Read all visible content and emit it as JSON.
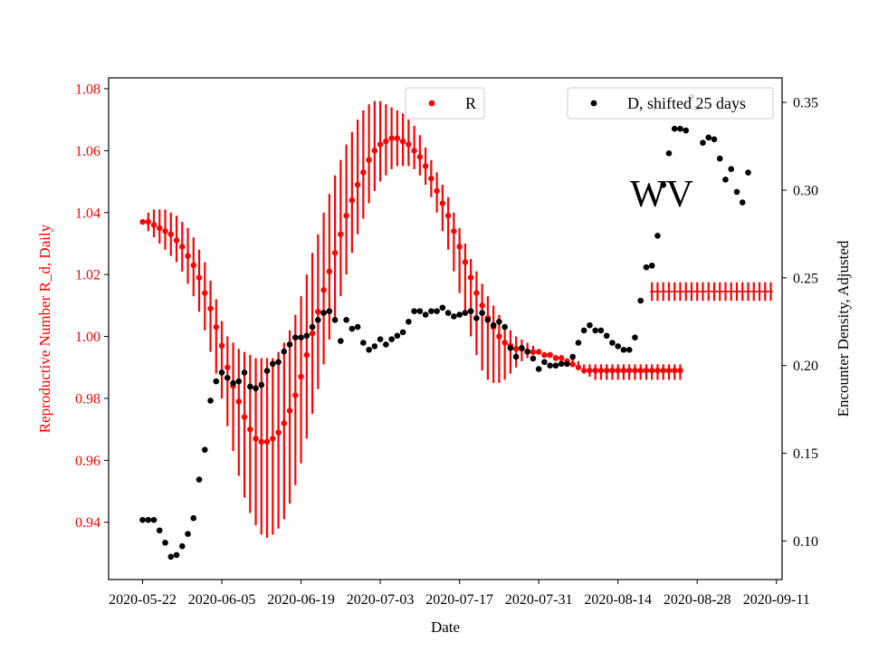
{
  "chart_data": {
    "type": "scatter",
    "xlabel": "Date",
    "ylabel_left": "Reproductive Number R_d, Daily",
    "ylabel_right": "Encounter Density, Adjusted",
    "annotation": "WV",
    "x_range": [
      "2020-05-16",
      "2020-09-12"
    ],
    "x_ticks": [
      "2020-05-22",
      "2020-06-05",
      "2020-06-19",
      "2020-07-03",
      "2020-07-17",
      "2020-07-31",
      "2020-08-14",
      "2020-08-28",
      "2020-09-11"
    ],
    "ylim_left": [
      0.9215,
      1.0835
    ],
    "yticks_left": [
      "0.94",
      "0.96",
      "0.98",
      "1.00",
      "1.02",
      "1.04",
      "1.06",
      "1.08"
    ],
    "ylim_right": [
      0.078,
      0.364
    ],
    "yticks_right": [
      "0.10",
      "0.15",
      "0.20",
      "0.25",
      "0.30",
      "0.35"
    ],
    "colors": {
      "R": "#ff0000",
      "D": "#000000",
      "left_axis": "#ff0000"
    },
    "grid": false,
    "legend": [
      {
        "label": "R",
        "position": "upper-center"
      },
      {
        "label": "D, shifted 25 days",
        "position": "top-right"
      }
    ],
    "series": [
      {
        "name": "R",
        "axis": "left",
        "style": "points with vertical error bars",
        "start_date": "2020-05-22",
        "interval_days": 1,
        "values": [
          1.037,
          1.037,
          1.036,
          1.035,
          1.034,
          1.033,
          1.031,
          1.029,
          1.026,
          1.023,
          1.019,
          1.014,
          1.009,
          1.003,
          0.997,
          0.99,
          0.984,
          0.979,
          0.974,
          0.97,
          0.967,
          0.966,
          0.966,
          0.967,
          0.969,
          0.972,
          0.976,
          0.981,
          0.987,
          0.994,
          1.001,
          1.008,
          1.015,
          1.021,
          1.027,
          1.033,
          1.039,
          1.044,
          1.049,
          1.053,
          1.057,
          1.06,
          1.062,
          1.063,
          1.064,
          1.064,
          1.063,
          1.062,
          1.06,
          1.058,
          1.055,
          1.051,
          1.047,
          1.043,
          1.039,
          1.034,
          1.029,
          1.024,
          1.019,
          1.014,
          1.01,
          1.006,
          1.003,
          1.0,
          0.998,
          0.997,
          0.996,
          0.996,
          0.995,
          0.995,
          0.995,
          0.994,
          0.994,
          0.993,
          0.993,
          0.992,
          0.991,
          0.99,
          0.989,
          0.989,
          0.989,
          0.989,
          0.989,
          0.989,
          0.989,
          0.989,
          0.989,
          0.989,
          0.989,
          0.989,
          0.989,
          0.989,
          0.989,
          0.989,
          0.989,
          0.989
        ],
        "error_lo": [
          1.037,
          1.034,
          1.032,
          1.03,
          1.028,
          1.026,
          1.024,
          1.021,
          1.017,
          1.013,
          1.008,
          1.002,
          0.995,
          0.988,
          0.98,
          0.971,
          0.963,
          0.955,
          0.948,
          0.943,
          0.939,
          0.936,
          0.935,
          0.936,
          0.938,
          0.941,
          0.946,
          0.952,
          0.959,
          0.967,
          0.975,
          0.983,
          0.991,
          0.999,
          1.006,
          1.013,
          1.02,
          1.027,
          1.033,
          1.038,
          1.043,
          1.047,
          1.05,
          1.052,
          1.054,
          1.055,
          1.055,
          1.055,
          1.054,
          1.052,
          1.049,
          1.045,
          1.04,
          1.034,
          1.028,
          1.021,
          1.014,
          1.007,
          1.0,
          0.994,
          0.989,
          0.986,
          0.985,
          0.985,
          0.986,
          0.988,
          0.99,
          0.992,
          0.993,
          0.994,
          0.995,
          0.994,
          0.994,
          0.993,
          0.993,
          0.992,
          0.991,
          0.99,
          0.988,
          0.987,
          0.986,
          0.986,
          0.986,
          0.986,
          0.986,
          0.986,
          0.986,
          0.986,
          0.986,
          0.986,
          0.986,
          0.986,
          0.986,
          0.986,
          0.986,
          0.986
        ],
        "error_hi": [
          1.037,
          1.04,
          1.041,
          1.041,
          1.041,
          1.04,
          1.039,
          1.037,
          1.035,
          1.032,
          1.028,
          1.024,
          1.018,
          1.012,
          1.005,
          1.0,
          0.998,
          0.996,
          0.995,
          0.994,
          0.993,
          0.993,
          0.993,
          0.993,
          0.995,
          0.998,
          1.002,
          1.007,
          1.013,
          1.02,
          1.027,
          1.033,
          1.04,
          1.046,
          1.052,
          1.057,
          1.062,
          1.066,
          1.07,
          1.073,
          1.075,
          1.076,
          1.076,
          1.075,
          1.074,
          1.073,
          1.072,
          1.07,
          1.068,
          1.065,
          1.061,
          1.057,
          1.053,
          1.049,
          1.045,
          1.04,
          1.035,
          1.03,
          1.025,
          1.021,
          1.017,
          1.013,
          1.01,
          1.007,
          1.004,
          1.002,
          1.0,
          0.999,
          0.998,
          0.997,
          0.996,
          0.995,
          0.995,
          0.994,
          0.994,
          0.993,
          0.993,
          0.992,
          0.991,
          0.991,
          0.991,
          0.991,
          0.991,
          0.991,
          0.991,
          0.991,
          0.991,
          0.991,
          0.991,
          0.991,
          0.991,
          0.991,
          0.991,
          0.991,
          0.991,
          0.991
        ],
        "flat_segment": {
          "from": "2020-08-20",
          "to": "2020-09-10",
          "value": 1.0145,
          "error_lo": 1.0115,
          "error_hi": 1.0175,
          "style": "error bars only"
        }
      },
      {
        "name": "D, shifted 25 days",
        "axis": "right",
        "style": "points",
        "start_date": "2020-05-22",
        "interval_days": 1,
        "values": [
          0.112,
          0.112,
          0.112,
          0.106,
          0.099,
          0.091,
          0.092,
          0.097,
          0.104,
          0.113,
          0.135,
          0.152,
          0.18,
          0.191,
          0.196,
          0.193,
          0.19,
          0.191,
          0.196,
          0.188,
          0.187,
          0.189,
          0.197,
          0.201,
          0.202,
          0.208,
          0.212,
          0.216,
          0.216,
          0.217,
          0.222,
          0.226,
          0.23,
          0.231,
          0.226,
          0.214,
          0.226,
          0.221,
          0.222,
          0.213,
          0.209,
          0.211,
          0.215,
          0.212,
          0.215,
          0.217,
          0.219,
          0.225,
          0.231,
          0.231,
          0.229,
          0.231,
          0.231,
          0.233,
          0.23,
          0.228,
          0.229,
          0.23,
          0.231,
          0.227,
          0.23,
          0.226,
          0.223,
          0.225,
          0.222,
          0.21,
          0.205,
          0.21,
          0.208,
          0.204,
          0.198,
          0.202,
          0.2,
          0.2,
          0.201,
          0.201,
          0.205,
          0.213,
          0.22,
          0.223,
          0.22,
          0.22,
          0.217,
          0.213,
          0.211,
          0.209,
          0.209,
          0.216,
          0.237,
          0.256,
          0.257,
          0.274,
          0.303,
          0.321,
          0.335,
          0.335,
          0.334,
          0.353,
          0.347,
          0.327,
          0.33,
          0.329,
          0.318,
          0.306,
          0.312,
          0.299,
          0.293,
          0.31
        ]
      }
    ]
  }
}
